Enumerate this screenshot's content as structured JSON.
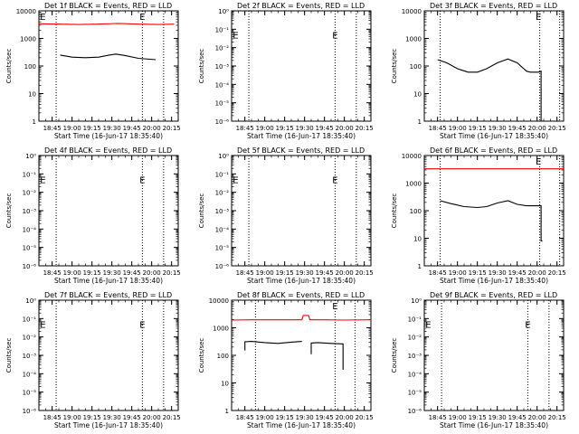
{
  "chart_data": [
    {
      "type": "line",
      "title": "Det 1f BLACK = Events, RED = LLD",
      "xlabel": "Start Time (16-Jun-17 18:35:40)",
      "ylabel": "Counts/sec",
      "y_scale": "log",
      "ylim": [
        1,
        10000
      ],
      "ytick_labels": [
        "1",
        "10",
        "100",
        "1000",
        "10000"
      ],
      "xlim": [
        "18:35",
        "20:20"
      ],
      "xtick_labels": [
        "18:45",
        "19:00",
        "19:15",
        "19:30",
        "19:45",
        "20:00",
        "20:15"
      ],
      "grid": false,
      "markers": [
        {
          "text": "E",
          "x": "18:38",
          "y": 10000
        },
        {
          "text": "E",
          "x": "19:53",
          "y": 10000
        }
      ],
      "vlines": [
        "18:48",
        "19:53",
        "20:09"
      ],
      "series": [
        {
          "color": "#ff0000",
          "x": [
            "18:35",
            "18:50",
            "19:05",
            "19:20",
            "19:35",
            "19:50",
            "20:05",
            "20:17"
          ],
          "y": [
            3400,
            3300,
            3200,
            3300,
            3500,
            3300,
            3200,
            3300
          ]
        },
        {
          "color": "#000000",
          "x": [
            "18:51",
            "19:00",
            "19:10",
            "19:20",
            "19:28",
            "19:33",
            "19:40",
            "19:50",
            "20:03"
          ],
          "y": [
            250,
            210,
            200,
            210,
            250,
            270,
            240,
            190,
            170
          ]
        }
      ]
    },
    {
      "type": "line",
      "title": "Det 2f BLACK = Events, RED = LLD",
      "xlabel": "Start Time (16-Jun-17 18:35:40)",
      "ylabel": "Counts/sec",
      "y_scale": "log",
      "ylim": [
        1e-06,
        1
      ],
      "ytick_labels": [
        "10⁻⁶",
        "10⁻⁵",
        "10⁻⁴",
        "10⁻³",
        "10⁻²",
        "10⁻¹",
        "10⁰"
      ],
      "xlim": [
        "18:35",
        "20:20"
      ],
      "xtick_labels": [
        "18:45",
        "19:00",
        "19:15",
        "19:30",
        "19:45",
        "20:00",
        "20:15"
      ],
      "grid": false,
      "markers": [
        {
          "text": "E",
          "x": "18:38",
          "y": 0.1
        },
        {
          "text": "E",
          "x": "19:53",
          "y": 0.1
        }
      ],
      "vlines": [
        "18:48",
        "19:53",
        "20:09"
      ],
      "series": []
    },
    {
      "type": "line",
      "title": "Det 3f BLACK = Events, RED = LLD",
      "xlabel": "Start Time (16-Jun-17 18:35:40)",
      "ylabel": "Counts/sec",
      "y_scale": "log",
      "ylim": [
        1,
        10000
      ],
      "ytick_labels": [
        "1",
        "10",
        "100",
        "1000",
        "10000"
      ],
      "xlim": [
        "18:35",
        "20:20"
      ],
      "xtick_labels": [
        "18:45",
        "19:00",
        "19:15",
        "19:30",
        "19:45",
        "20:00",
        "20:15"
      ],
      "grid": false,
      "markers": [
        {
          "text": "E",
          "x": "20:01",
          "y": 10000
        }
      ],
      "vlines": [
        "18:47",
        "20:02",
        "20:17"
      ],
      "series": [
        {
          "color": "#000000",
          "x": [
            "18:45",
            "18:52",
            "19:00",
            "19:08",
            "19:15",
            "19:22",
            "19:30",
            "19:38",
            "19:45",
            "19:50",
            "19:52",
            "19:55",
            "20:01",
            "20:03",
            "20:03",
            "20:04"
          ],
          "y": [
            170,
            130,
            80,
            60,
            60,
            80,
            130,
            180,
            130,
            80,
            65,
            60,
            60,
            65,
            1,
            1
          ]
        }
      ]
    },
    {
      "type": "line",
      "title": "Det 4f BLACK = Events, RED = LLD",
      "xlabel": "Start Time (16-Jun-17 18:35:40)",
      "ylabel": "Counts/sec",
      "y_scale": "log",
      "ylim": [
        1e-06,
        1
      ],
      "ytick_labels": [
        "10⁻⁶",
        "10⁻⁵",
        "10⁻⁴",
        "10⁻³",
        "10⁻²",
        "10⁻¹",
        "10⁰"
      ],
      "xlim": [
        "18:35",
        "20:20"
      ],
      "xtick_labels": [
        "18:45",
        "19:00",
        "19:15",
        "19:30",
        "19:45",
        "20:00",
        "20:15"
      ],
      "grid": false,
      "markers": [
        {
          "text": "E",
          "x": "18:38",
          "y": 0.1
        },
        {
          "text": "E",
          "x": "19:53",
          "y": 0.1
        }
      ],
      "vlines": [
        "18:48",
        "19:53",
        "20:09"
      ],
      "series": []
    },
    {
      "type": "line",
      "title": "Det 5f BLACK = Events, RED = LLD",
      "xlabel": "Start Time (16-Jun-17 18:35:40)",
      "ylabel": "Counts/sec",
      "y_scale": "log",
      "ylim": [
        1e-06,
        1
      ],
      "ytick_labels": [
        "10⁻⁶",
        "10⁻⁵",
        "10⁻⁴",
        "10⁻³",
        "10⁻²",
        "10⁻¹",
        "10⁰"
      ],
      "xlim": [
        "18:35",
        "20:20"
      ],
      "xtick_labels": [
        "18:45",
        "19:00",
        "19:15",
        "19:30",
        "19:45",
        "20:00",
        "20:15"
      ],
      "grid": false,
      "markers": [
        {
          "text": "E",
          "x": "18:38",
          "y": 0.1
        },
        {
          "text": "E",
          "x": "19:53",
          "y": 0.1
        }
      ],
      "vlines": [
        "18:48",
        "19:53",
        "20:09"
      ],
      "series": []
    },
    {
      "type": "line",
      "title": "Det 6f BLACK = Events, RED = LLD",
      "xlabel": "Start Time (16-Jun-17 18:35:40)",
      "ylabel": "Counts/sec",
      "y_scale": "log",
      "ylim": [
        1,
        10000
      ],
      "ytick_labels": [
        "1",
        "10",
        "100",
        "1000",
        "10000"
      ],
      "xlim": [
        "18:35",
        "20:20"
      ],
      "xtick_labels": [
        "18:45",
        "19:00",
        "19:15",
        "19:30",
        "19:45",
        "20:00",
        "20:15"
      ],
      "grid": false,
      "markers": [
        {
          "text": "E",
          "x": "20:01",
          "y": 10000
        }
      ],
      "vlines": [
        "18:47",
        "20:02",
        "20:17"
      ],
      "series": [
        {
          "color": "#ff0000",
          "x": [
            "18:35",
            "18:50",
            "19:05",
            "19:20",
            "19:35",
            "19:50",
            "20:05",
            "20:20"
          ],
          "y": [
            3300,
            3300,
            3300,
            3300,
            3300,
            3300,
            3300,
            3300
          ]
        },
        {
          "color": "#000000",
          "x": [
            "18:47",
            "18:55",
            "19:05",
            "19:15",
            "19:22",
            "19:30",
            "19:38",
            "19:45",
            "19:52",
            "20:01",
            "20:03",
            "20:03",
            "20:04"
          ],
          "y": [
            230,
            180,
            140,
            130,
            140,
            190,
            230,
            170,
            150,
            150,
            150,
            8,
            8
          ]
        }
      ]
    },
    {
      "type": "line",
      "title": "Det 7f BLACK = Events, RED = LLD",
      "xlabel": "Start Time (16-Jun-17 18:35:40)",
      "ylabel": "Counts/sec",
      "y_scale": "log",
      "ylim": [
        1e-06,
        1
      ],
      "ytick_labels": [
        "10⁻⁶",
        "10⁻⁵",
        "10⁻⁴",
        "10⁻³",
        "10⁻²",
        "10⁻¹",
        "10⁰"
      ],
      "xlim": [
        "18:35",
        "20:20"
      ],
      "xtick_labels": [
        "18:45",
        "19:00",
        "19:15",
        "19:30",
        "19:45",
        "20:00",
        "20:15"
      ],
      "grid": false,
      "markers": [
        {
          "text": "E",
          "x": "18:38",
          "y": 0.1
        },
        {
          "text": "E",
          "x": "19:53",
          "y": 0.1
        }
      ],
      "vlines": [
        "18:48",
        "19:53",
        "20:09"
      ],
      "series": []
    },
    {
      "type": "line",
      "title": "Det 8f BLACK = Events, RED = LLD",
      "xlabel": "Start Time (16-Jun-17 18:35:40)",
      "ylabel": "Counts/sec",
      "y_scale": "log",
      "ylim": [
        1,
        10000
      ],
      "ytick_labels": [
        "1",
        "10",
        "100",
        "1000",
        "10000"
      ],
      "xlim": [
        "18:35",
        "20:20"
      ],
      "xtick_labels": [
        "18:45",
        "19:00",
        "19:15",
        "19:30",
        "19:45",
        "20:00",
        "20:15"
      ],
      "grid": false,
      "markers": [
        {
          "text": "E",
          "x": "19:53",
          "y": 10000
        }
      ],
      "vlines": [
        "18:53",
        "19:53",
        "20:08"
      ],
      "series": [
        {
          "color": "#ff0000",
          "x": [
            "18:35",
            "18:50",
            "19:05",
            "19:20",
            "19:28",
            "19:29",
            "19:33",
            "19:34",
            "19:45",
            "20:00",
            "20:20"
          ],
          "y": [
            1900,
            1950,
            1950,
            1950,
            1950,
            2800,
            2800,
            1950,
            1950,
            1900,
            1950
          ]
        },
        {
          "color": "#000000",
          "x": [
            "18:45",
            "18:45",
            "18:50",
            "19:00",
            "19:10",
            "19:20",
            "19:28"
          ],
          "y": [
            150,
            310,
            320,
            290,
            270,
            300,
            320
          ]
        },
        {
          "color": "#000000",
          "x": [
            "19:35",
            "19:35",
            "19:40",
            "19:50",
            "19:58",
            "19:59",
            "19:59",
            "19:59"
          ],
          "y": [
            110,
            280,
            290,
            270,
            260,
            260,
            80,
            30
          ]
        }
      ]
    },
    {
      "type": "line",
      "title": "Det 9f BLACK = Events, RED = LLD",
      "xlabel": "Start Time (16-Jun-17 18:35:40)",
      "ylabel": "Counts/sec",
      "y_scale": "log",
      "ylim": [
        1e-06,
        1
      ],
      "ytick_labels": [
        "10⁻⁶",
        "10⁻⁵",
        "10⁻⁴",
        "10⁻³",
        "10⁻²",
        "10⁻¹",
        "10⁰"
      ],
      "xlim": [
        "18:35",
        "20:20"
      ],
      "xtick_labels": [
        "18:45",
        "19:00",
        "19:15",
        "19:30",
        "19:45",
        "20:00",
        "20:15"
      ],
      "grid": false,
      "markers": [
        {
          "text": "E",
          "x": "18:38",
          "y": 0.1
        },
        {
          "text": "E",
          "x": "19:53",
          "y": 0.1
        }
      ],
      "vlines": [
        "18:48",
        "19:53",
        "20:09"
      ],
      "series": []
    }
  ]
}
